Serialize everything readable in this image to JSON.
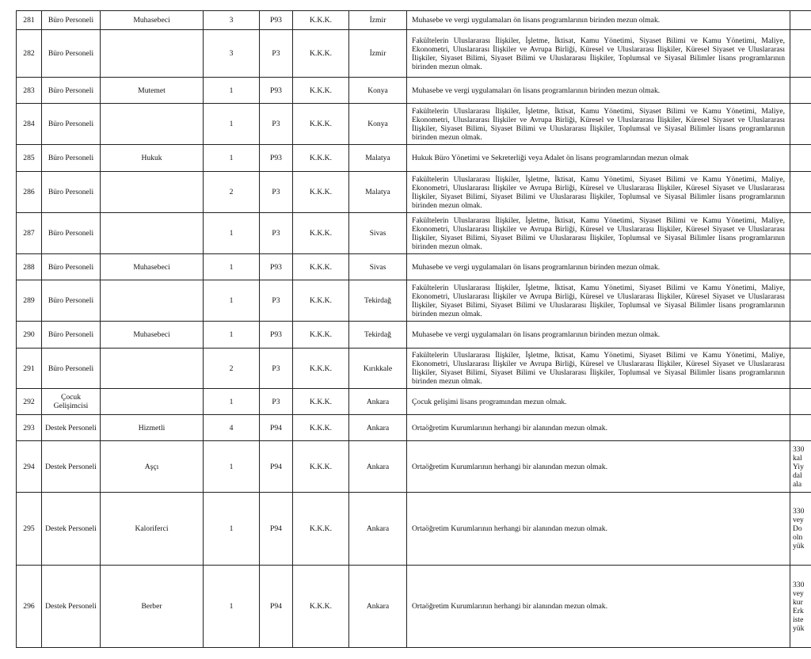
{
  "rows": [
    {
      "no": "281",
      "unvan": "Büro Personeli",
      "nitelik": "Muhasebeci",
      "adet": "3",
      "kod": "P93",
      "kpss": "K.K.K.",
      "il": "İzmir",
      "aciklama": "Muhasebe ve vergi uygulamaları ön lisans programlarının birinden mezun olmak.",
      "ek": ""
    },
    {
      "no": "282",
      "unvan": "Büro Personeli",
      "nitelik": "",
      "adet": "3",
      "kod": "P3",
      "kpss": "K.K.K.",
      "il": "İzmir",
      "aciklama": "Fakültelerin Uluslararası İlişkiler, İşletme, İktisat, Kamu Yönetimi, Siyaset Bilimi ve Kamu Yönetimi, Maliye, Ekonometri, Uluslararası İlişkiler ve Avrupa Birliği, Küresel ve Uluslararası İlişkiler, Küresel Siyaset ve Uluslararası İlişkiler, Siyaset Bilimi, Siyaset Bilimi ve Uluslararası İlişkiler, Toplumsal ve Siyasal Bilimler lisans programlarının birinden mezun olmak.",
      "ek": ""
    },
    {
      "no": "283",
      "unvan": "Büro Personeli",
      "nitelik": "Mutemet",
      "adet": "1",
      "kod": "P93",
      "kpss": "K.K.K.",
      "il": "Konya",
      "aciklama": "Muhasebe ve vergi uygulamaları ön lisans programlarının birinden mezun olmak.",
      "ek": ""
    },
    {
      "no": "284",
      "unvan": "Büro Personeli",
      "nitelik": "",
      "adet": "1",
      "kod": "P3",
      "kpss": "K.K.K.",
      "il": "Konya",
      "aciklama": "Fakültelerin Uluslararası İlişkiler, İşletme, İktisat, Kamu Yönetimi, Siyaset Bilimi ve Kamu Yönetimi, Maliye, Ekonometri, Uluslararası İlişkiler ve Avrupa Birliği, Küresel ve Uluslararası İlişkiler, Küresel Siyaset ve Uluslararası İlişkiler, Siyaset Bilimi, Siyaset Bilimi ve Uluslararası İlişkiler, Toplumsal ve Siyasal Bilimler lisans programlarının birinden mezun olmak.",
      "ek": ""
    },
    {
      "no": "285",
      "unvan": "Büro Personeli",
      "nitelik": "Hukuk",
      "adet": "1",
      "kod": "P93",
      "kpss": "K.K.K.",
      "il": "Malatya",
      "aciklama": "Hukuk Büro Yönetimi ve Sekreterliği veya Adalet ön lisans programlarından mezun olmak",
      "ek": ""
    },
    {
      "no": "286",
      "unvan": "Büro Personeli",
      "nitelik": "",
      "adet": "2",
      "kod": "P3",
      "kpss": "K.K.K.",
      "il": "Malatya",
      "aciklama": "Fakültelerin Uluslararası İlişkiler, İşletme, İktisat, Kamu Yönetimi, Siyaset Bilimi ve Kamu Yönetimi, Maliye, Ekonometri, Uluslararası İlişkiler ve Avrupa Birliği, Küresel ve Uluslararası İlişkiler, Küresel Siyaset ve Uluslararası İlişkiler, Siyaset Bilimi, Siyaset Bilimi ve Uluslararası İlişkiler, Toplumsal ve Siyasal Bilimler lisans programlarının birinden mezun olmak.",
      "ek": ""
    },
    {
      "no": "287",
      "unvan": "Büro Personeli",
      "nitelik": "",
      "adet": "1",
      "kod": "P3",
      "kpss": "K.K.K.",
      "il": "Sivas",
      "aciklama": "Fakültelerin Uluslararası İlişkiler, İşletme, İktisat, Kamu Yönetimi, Siyaset Bilimi ve Kamu Yönetimi, Maliye, Ekonometri, Uluslararası İlişkiler ve Avrupa Birliği, Küresel ve Uluslararası İlişkiler, Küresel Siyaset ve Uluslararası İlişkiler, Siyaset Bilimi, Siyaset Bilimi ve Uluslararası İlişkiler, Toplumsal ve Siyasal Bilimler lisans programlarının birinden mezun olmak.",
      "ek": ""
    },
    {
      "no": "288",
      "unvan": "Büro Personeli",
      "nitelik": "Muhasebeci",
      "adet": "1",
      "kod": "P93",
      "kpss": "K.K.K.",
      "il": "Sivas",
      "aciklama": "Muhasebe ve vergi uygulamaları ön lisans programlarının birinden mezun olmak.",
      "ek": ""
    },
    {
      "no": "289",
      "unvan": "Büro Personeli",
      "nitelik": "",
      "adet": "1",
      "kod": "P3",
      "kpss": "K.K.K.",
      "il": "Tekirdağ",
      "aciklama": "Fakültelerin Uluslararası İlişkiler, İşletme, İktisat, Kamu Yönetimi, Siyaset Bilimi ve Kamu Yönetimi, Maliye, Ekonometri, Uluslararası İlişkiler ve Avrupa Birliği, Küresel ve Uluslararası İlişkiler, Küresel Siyaset ve Uluslararası İlişkiler, Siyaset Bilimi, Siyaset Bilimi ve Uluslararası İlişkiler, Toplumsal ve Siyasal Bilimler lisans programlarının birinden mezun olmak.",
      "ek": ""
    },
    {
      "no": "290",
      "unvan": "Büro Personeli",
      "nitelik": "Muhasebeci",
      "adet": "1",
      "kod": "P93",
      "kpss": "K.K.K.",
      "il": "Tekirdağ",
      "aciklama": "Muhasebe ve vergi uygulamaları ön lisans programlarının birinden mezun olmak.",
      "ek": ""
    },
    {
      "no": "291",
      "unvan": "Büro Personeli",
      "nitelik": "",
      "adet": "2",
      "kod": "P3",
      "kpss": "K.K.K.",
      "il": "Kırıkkale",
      "aciklama": "Fakültelerin Uluslararası İlişkiler, İşletme, İktisat, Kamu Yönetimi, Siyaset Bilimi ve Kamu Yönetimi, Maliye, Ekonometri, Uluslararası İlişkiler ve Avrupa Birliği, Küresel ve Uluslararası İlişkiler, Küresel Siyaset ve Uluslararası İlişkiler, Siyaset Bilimi, Siyaset Bilimi ve Uluslararası İlişkiler, Toplumsal ve Siyasal Bilimler lisans programlarının birinden mezun olmak.",
      "ek": ""
    },
    {
      "no": "292",
      "unvan": "Çocuk Gelişimcisi",
      "nitelik": "",
      "adet": "1",
      "kod": "P3",
      "kpss": "K.K.K.",
      "il": "Ankara",
      "aciklama": "Çocuk gelişimi lisans programından mezun olmak.",
      "ek": ""
    },
    {
      "no": "293",
      "unvan": "Destek Personeli",
      "nitelik": "Hizmetli",
      "adet": "4",
      "kod": "P94",
      "kpss": "K.K.K.",
      "il": "Ankara",
      "aciklama": "Ortaöğretim Kurumlarının herhangi bir alanından mezun olmak.",
      "ek": ""
    },
    {
      "no": "294",
      "unvan": "Destek Personeli",
      "nitelik": "Aşçı",
      "adet": "1",
      "kod": "P94",
      "kpss": "K.K.K.",
      "il": "Ankara",
      "aciklama": "Ortaöğretim Kurumlarının herhangi bir alanından mezun olmak.",
      "ek": "330\nkal\nYiy\ndal\nala"
    },
    {
      "no": "295",
      "unvan": "Destek Personeli",
      "nitelik": "Kaloriferci",
      "adet": "1",
      "kod": "P94",
      "kpss": "K.K.K.",
      "il": "Ankara",
      "aciklama": "Ortaöğretim Kurumlarının herhangi bir alanından mezun olmak.",
      "ek": "330\nvey\nDo\noln\nyük"
    },
    {
      "no": "296",
      "unvan": "Destek Personeli",
      "nitelik": "Berber",
      "adet": "1",
      "kod": "P94",
      "kpss": "K.K.K.",
      "il": "Ankara",
      "aciklama": "Ortaöğretim Kurumlarının herhangi bir alanından mezun olmak.",
      "ek": "330\nvey\nkur\nErk\niste\nyük"
    }
  ]
}
